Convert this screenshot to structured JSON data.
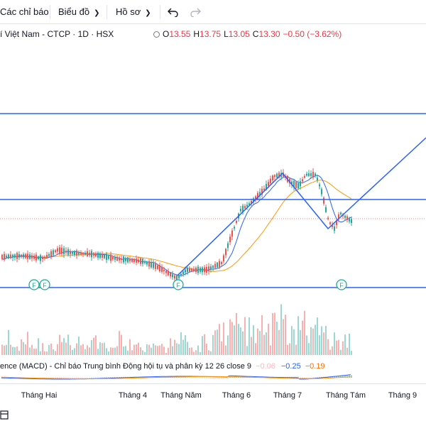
{
  "toolbar": {
    "indicators_label": "Các chỉ báo",
    "chart_label": "Biểu đồ",
    "profile_label": "Hồ sơ"
  },
  "legend": {
    "symbol": "í Việt Nam - CTCP · 1D · HSX",
    "open_label": "O",
    "open": "13.55",
    "high_label": "H",
    "high": "13.75",
    "low_label": "L",
    "low": "13.05",
    "close_label": "C",
    "close": "13.30",
    "change": "−0.50 (−3.62%)"
  },
  "macd": {
    "title": "ence (MACD) - Chỉ báo Trung bình Động hội tụ và phân kỳ 12 26 close 9",
    "histogram": "−0.06",
    "macd": "−0.25",
    "signal": "−0.19"
  },
  "x_axis": [
    "Tháng Hai",
    "Tháng 4",
    "Tháng Năm",
    "Tháng 6",
    "Tháng 7",
    "Tháng Tám",
    "Tháng 9"
  ],
  "event_marker_label": "F",
  "colors": {
    "up": "#26a69a",
    "down": "#ef5350",
    "trendline": "#2962ff",
    "ma_fast": "#2962ff",
    "ma_slow": "#ff9800",
    "event": "#22ab94"
  }
}
